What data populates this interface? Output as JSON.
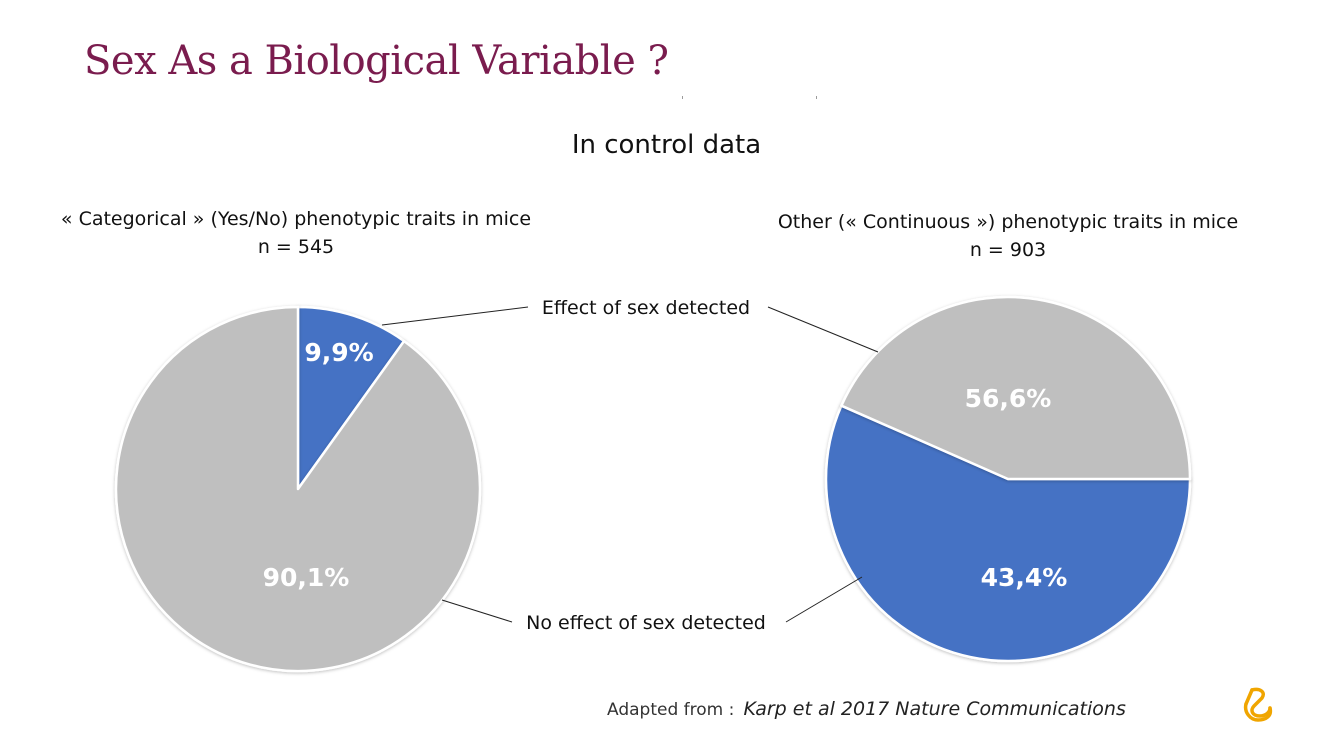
{
  "slide": {
    "title": "Sex As a Biological Variable ?",
    "subtitle": "In control data",
    "left_chart_title": "« Categorical » (Yes/No) phenotypic traits in mice",
    "left_chart_n": "n = 545",
    "right_chart_title": "Other (« Continuous ») phenotypic traits in mice",
    "right_chart_n": "n = 903",
    "callout_effect": "Effect of sex detected",
    "callout_no_effect": "No effect of sex detected",
    "citation_prefix": "Adapted from :",
    "citation_source": "Karp et al 2017  Nature Communications",
    "logo_icon": "company-logo-icon"
  },
  "colors": {
    "title": "#7a1c4e",
    "effect": "#4472c4",
    "no_effect": "#bfbfbf",
    "logo": "#f0a500"
  },
  "chart_data": [
    {
      "type": "pie",
      "title": "« Categorical » (Yes/No) phenotypic traits in mice",
      "subtitle": "n = 545",
      "categories": [
        "Effect of sex detected",
        "No effect of sex detected"
      ],
      "values": [
        9.9,
        90.1
      ],
      "labels": [
        "9,9%",
        "90,1%"
      ],
      "colors": [
        "#4472c4",
        "#bfbfbf"
      ]
    },
    {
      "type": "pie",
      "title": "Other (« Continuous ») phenotypic traits in mice",
      "subtitle": "n = 903",
      "categories": [
        "Effect of sex detected",
        "No effect of sex detected"
      ],
      "values": [
        56.6,
        43.4
      ],
      "labels": [
        "56,6%",
        "43,4%"
      ],
      "colors": [
        "#4472c4",
        "#bfbfbf"
      ]
    }
  ]
}
